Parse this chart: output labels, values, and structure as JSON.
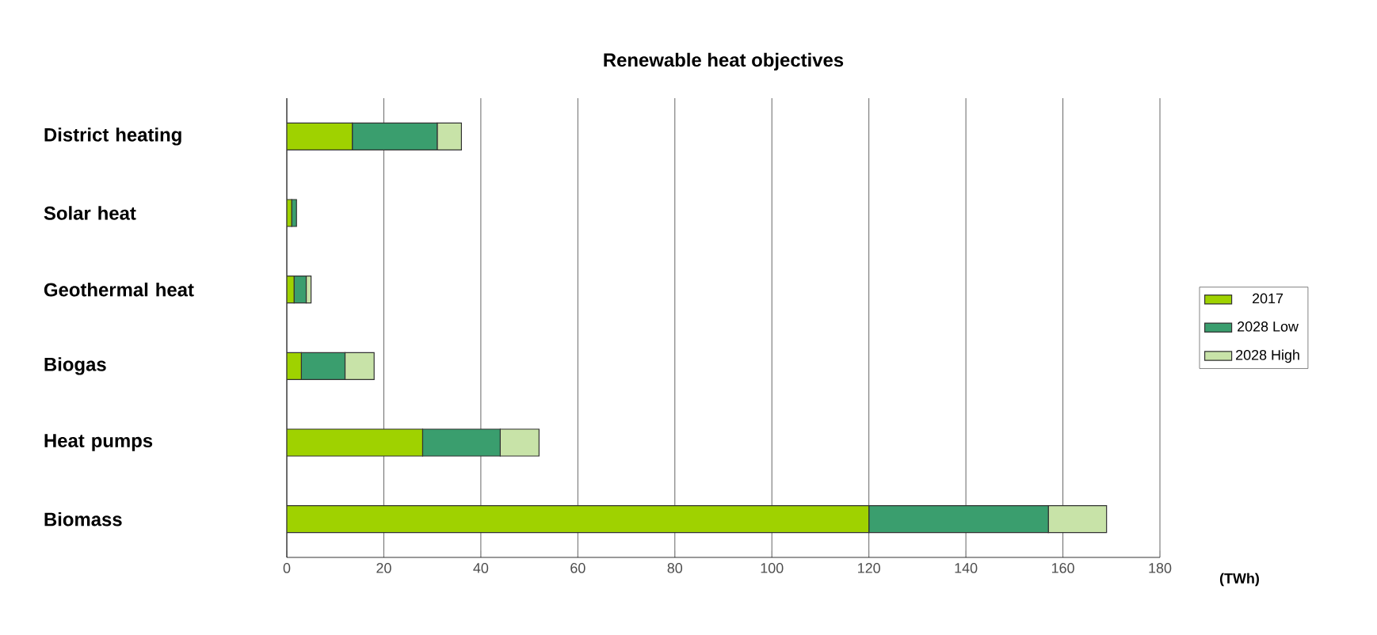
{
  "chart_data": {
    "type": "bar",
    "orientation": "horizontal",
    "stacked": true,
    "title": "Renewable heat objectives",
    "xlabel": "(TWh)",
    "categories": [
      "District heating",
      "Solar heat",
      "Geothermal heat",
      "Biogas",
      "Heat pumps",
      "Biomass"
    ],
    "series": [
      {
        "name": "2017",
        "color": "#9fd200",
        "values": [
          13.5,
          1,
          1.5,
          3,
          28,
          120
        ]
      },
      {
        "name": "2028 Low",
        "color": "#3a9e6e",
        "values": [
          17.5,
          1,
          2.5,
          9,
          16,
          37
        ]
      },
      {
        "name": "2028 High",
        "color": "#c8e3a8",
        "values": [
          5,
          0,
          1,
          6,
          8,
          12
        ]
      }
    ],
    "xlim": [
      0,
      180
    ],
    "xticks": [
      0,
      20,
      40,
      60,
      80,
      100,
      120,
      140,
      160,
      180
    ],
    "grid": "x",
    "legend": "right"
  }
}
